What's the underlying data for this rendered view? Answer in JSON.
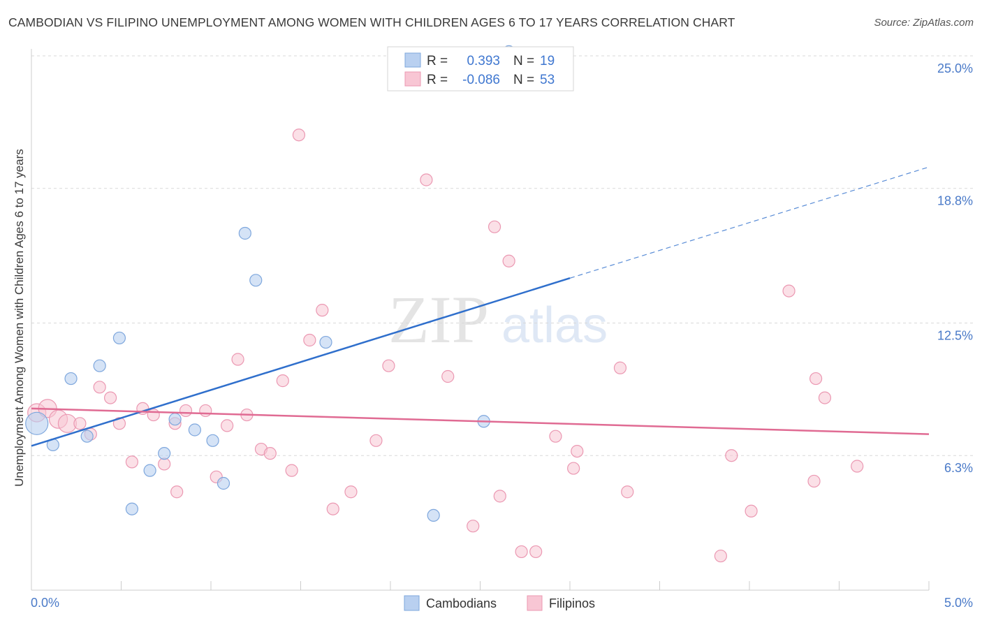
{
  "title": "CAMBODIAN VS FILIPINO UNEMPLOYMENT AMONG WOMEN WITH CHILDREN AGES 6 TO 17 YEARS CORRELATION CHART",
  "source": "Source: ZipAtlas.com",
  "watermark": {
    "zip": "ZIP",
    "atlas": "atlas"
  },
  "colors": {
    "cambodian_fill": "#b9d0f0",
    "cambodian_stroke": "#7ea7dd",
    "cambodian_line": "#2f6fcc",
    "filipino_fill": "#f8c6d4",
    "filipino_stroke": "#eb98b2",
    "filipino_line": "#e06b93",
    "axis_label": "#4a7ac8",
    "grid": "#d9d9d9"
  },
  "legend": {
    "rows": [
      {
        "r_label": "R =",
        "r_value": "0.393",
        "n_label": "N =",
        "n_value": "19"
      },
      {
        "r_label": "R =",
        "r_value": "-0.086",
        "n_label": "N =",
        "n_value": "53"
      }
    ]
  },
  "bottom_legend": {
    "items": [
      "Cambodians",
      "Filipinos"
    ]
  },
  "chart_data": {
    "type": "scatter",
    "xlabel": "",
    "ylabel": "Unemployment Among Women with Children Ages 6 to 17 years",
    "xlim": [
      0.0,
      5.0
    ],
    "ylim": [
      0.0,
      25.0
    ],
    "x_tick_labels": [
      "0.0%",
      "5.0%"
    ],
    "y_ticks": [
      6.3,
      12.5,
      18.8,
      25.0
    ],
    "y_tick_labels": [
      "6.3%",
      "12.5%",
      "18.8%",
      "25.0%"
    ],
    "series": [
      {
        "name": "Cambodians",
        "R": 0.393,
        "N": 19,
        "points": [
          {
            "x": 0.03,
            "y": 7.8,
            "big": true
          },
          {
            "x": 0.12,
            "y": 6.8
          },
          {
            "x": 0.22,
            "y": 9.9
          },
          {
            "x": 0.31,
            "y": 7.2
          },
          {
            "x": 0.38,
            "y": 10.5
          },
          {
            "x": 0.49,
            "y": 11.8
          },
          {
            "x": 0.56,
            "y": 3.8
          },
          {
            "x": 0.66,
            "y": 5.6
          },
          {
            "x": 0.74,
            "y": 6.4
          },
          {
            "x": 0.8,
            "y": 8.0
          },
          {
            "x": 0.91,
            "y": 7.5
          },
          {
            "x": 1.01,
            "y": 7.0
          },
          {
            "x": 1.07,
            "y": 5.0
          },
          {
            "x": 1.19,
            "y": 16.7
          },
          {
            "x": 1.25,
            "y": 14.5
          },
          {
            "x": 1.64,
            "y": 11.6
          },
          {
            "x": 2.24,
            "y": 3.5
          },
          {
            "x": 2.52,
            "y": 7.9
          },
          {
            "x": 2.66,
            "y": 25.2
          }
        ],
        "trend": {
          "x0": 0.0,
          "y0": 6.75,
          "x1": 3.0,
          "y1": 14.6,
          "x_dash_end": 5.0,
          "y_dash_end": 19.8
        }
      },
      {
        "name": "Filipinos",
        "R": -0.086,
        "N": 53,
        "points": [
          {
            "x": 0.03,
            "y": 8.3,
            "big": true
          },
          {
            "x": 0.09,
            "y": 8.5,
            "big": true
          },
          {
            "x": 0.15,
            "y": 8.0,
            "big": true
          },
          {
            "x": 0.2,
            "y": 7.8,
            "big": true
          },
          {
            "x": 0.27,
            "y": 7.8
          },
          {
            "x": 0.33,
            "y": 7.3
          },
          {
            "x": 0.38,
            "y": 9.5
          },
          {
            "x": 0.44,
            "y": 9.0
          },
          {
            "x": 0.49,
            "y": 7.8
          },
          {
            "x": 0.56,
            "y": 6.0
          },
          {
            "x": 0.62,
            "y": 8.5
          },
          {
            "x": 0.68,
            "y": 8.2
          },
          {
            "x": 0.74,
            "y": 5.9
          },
          {
            "x": 0.8,
            "y": 7.8
          },
          {
            "x": 0.81,
            "y": 4.6
          },
          {
            "x": 0.86,
            "y": 8.4
          },
          {
            "x": 0.97,
            "y": 8.4
          },
          {
            "x": 1.03,
            "y": 5.3
          },
          {
            "x": 1.09,
            "y": 7.7
          },
          {
            "x": 1.15,
            "y": 10.8
          },
          {
            "x": 1.2,
            "y": 8.2
          },
          {
            "x": 1.28,
            "y": 6.6
          },
          {
            "x": 1.33,
            "y": 6.4
          },
          {
            "x": 1.4,
            "y": 9.8
          },
          {
            "x": 1.45,
            "y": 5.6
          },
          {
            "x": 1.49,
            "y": 21.3
          },
          {
            "x": 1.55,
            "y": 11.7
          },
          {
            "x": 1.62,
            "y": 13.1
          },
          {
            "x": 1.68,
            "y": 3.8
          },
          {
            "x": 1.78,
            "y": 4.6
          },
          {
            "x": 1.92,
            "y": 7.0
          },
          {
            "x": 1.99,
            "y": 10.5
          },
          {
            "x": 2.2,
            "y": 19.2
          },
          {
            "x": 2.32,
            "y": 10.0
          },
          {
            "x": 2.46,
            "y": 3.0
          },
          {
            "x": 2.58,
            "y": 17.0
          },
          {
            "x": 2.61,
            "y": 4.4
          },
          {
            "x": 2.66,
            "y": 15.4
          },
          {
            "x": 2.73,
            "y": 1.8
          },
          {
            "x": 2.81,
            "y": 1.8
          },
          {
            "x": 2.92,
            "y": 7.2
          },
          {
            "x": 3.02,
            "y": 5.7
          },
          {
            "x": 3.04,
            "y": 6.5
          },
          {
            "x": 3.28,
            "y": 10.4
          },
          {
            "x": 3.32,
            "y": 4.6
          },
          {
            "x": 3.84,
            "y": 1.6
          },
          {
            "x": 3.9,
            "y": 6.3
          },
          {
            "x": 4.01,
            "y": 3.7
          },
          {
            "x": 4.22,
            "y": 14.0
          },
          {
            "x": 4.36,
            "y": 5.1
          },
          {
            "x": 4.37,
            "y": 9.9
          },
          {
            "x": 4.42,
            "y": 9.0
          },
          {
            "x": 4.6,
            "y": 5.8
          }
        ],
        "trend": {
          "x0": 0.0,
          "y0": 8.5,
          "x1": 5.0,
          "y1": 7.3
        }
      }
    ]
  }
}
